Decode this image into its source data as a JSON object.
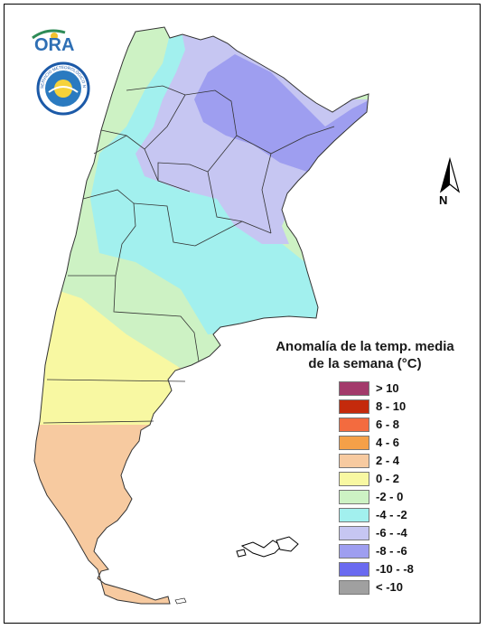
{
  "logo": {
    "text": "ORA",
    "seal_text": "SERVICIO METEOROLÓGICO NACIONAL · ARGENTINA"
  },
  "north_arrow": {
    "label": "N",
    "icon": "north-arrow-icon"
  },
  "legend": {
    "title_line1": "Anomalía de la temp. media",
    "title_line2": "de la semana (°C)",
    "items": [
      {
        "label": "> 10",
        "color": "#a33a6b"
      },
      {
        "label": "8 - 10",
        "color": "#c42a0c"
      },
      {
        "label": "6 - 8",
        "color": "#f36b3f"
      },
      {
        "label": "4 - 6",
        "color": "#f5a048"
      },
      {
        "label": "2 - 4",
        "color": "#f7caa0"
      },
      {
        "label": "0 - 2",
        "color": "#f8f8a2"
      },
      {
        "label": "-2 - 0",
        "color": "#cdf2c4"
      },
      {
        "label": "-4 - -2",
        "color": "#a2f0ee"
      },
      {
        "label": "-6 - -4",
        "color": "#c6c6f2"
      },
      {
        "label": "-8 - -6",
        "color": "#9e9ef0"
      },
      {
        "label": "-10 - -8",
        "color": "#6a6af0"
      },
      {
        "label": "< -10",
        "color": "#a0a0a0"
      }
    ]
  }
}
